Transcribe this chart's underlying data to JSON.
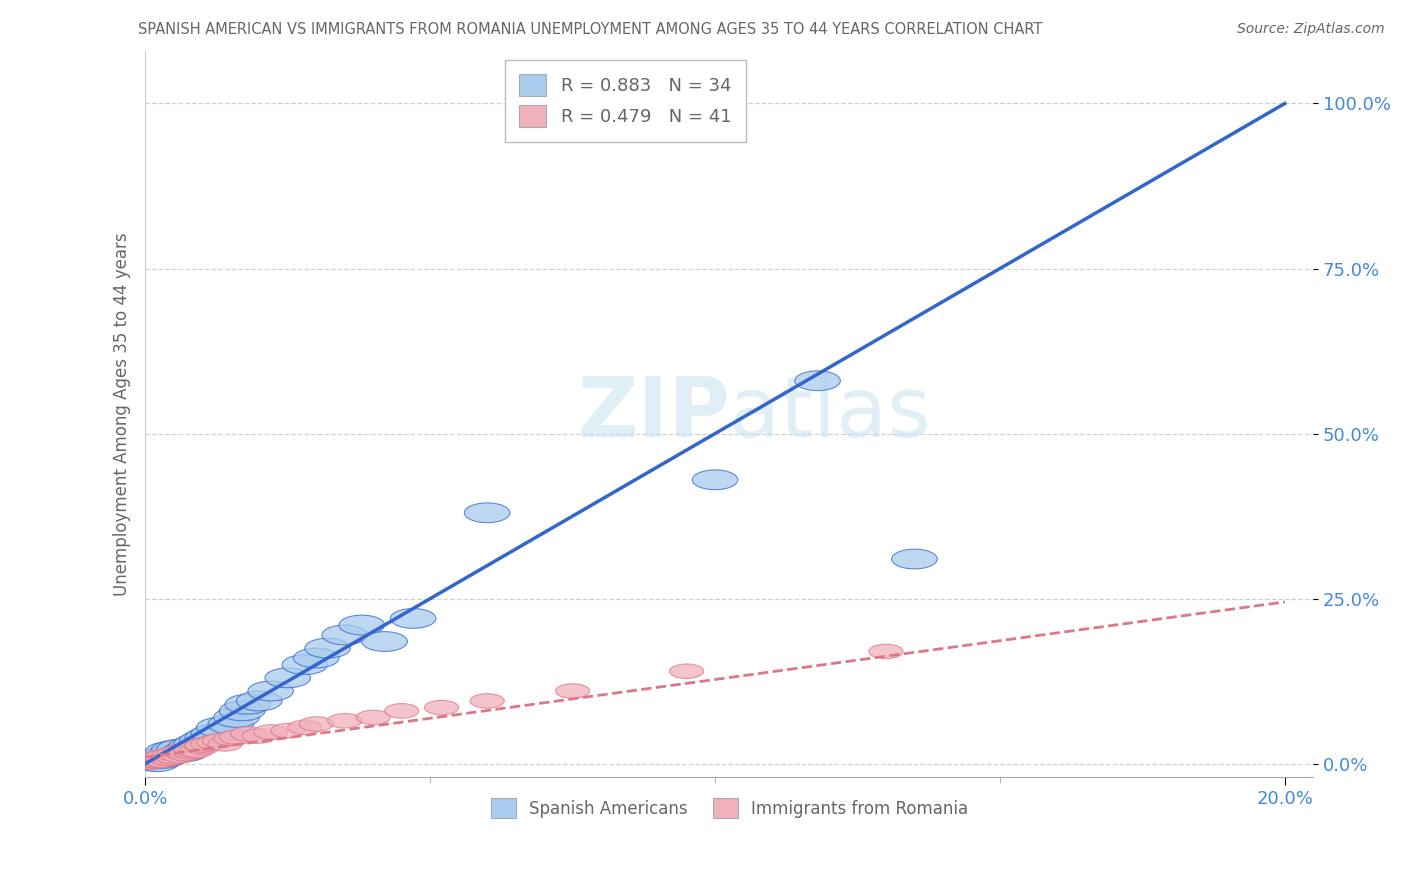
{
  "title": "SPANISH AMERICAN VS IMMIGRANTS FROM ROMANIA UNEMPLOYMENT AMONG AGES 35 TO 44 YEARS CORRELATION CHART",
  "source": "Source: ZipAtlas.com",
  "ylabel": "Unemployment Among Ages 35 to 44 years",
  "x_ticklabels": [
    "0.0%",
    "20.0%"
  ],
  "y_ticklabels": [
    "0.0%",
    "25.0%",
    "50.0%",
    "75.0%",
    "100.0%"
  ],
  "xlim": [
    0.0,
    0.205
  ],
  "ylim": [
    -0.02,
    1.08
  ],
  "blue_R": 0.883,
  "blue_N": 34,
  "pink_R": 0.479,
  "pink_N": 41,
  "blue_color": "#aaccee",
  "pink_color": "#f0b0bc",
  "blue_line_color": "#3366cc",
  "pink_line_color": "#dd7788",
  "watermark_text": "ZIPatlas",
  "legend_label_blue": "Spanish Americans",
  "legend_label_pink": "Immigrants from Romania",
  "background_color": "#ffffff",
  "grid_color": "#cccccc",
  "title_color": "#666666",
  "axis_label_color": "#666666",
  "tick_color": "#4488dd",
  "blue_scatter_x": [
    0.001,
    0.002,
    0.003,
    0.003,
    0.004,
    0.004,
    0.005,
    0.005,
    0.006,
    0.007,
    0.008,
    0.009,
    0.01,
    0.011,
    0.012,
    0.013,
    0.015,
    0.016,
    0.017,
    0.018,
    0.02,
    0.022,
    0.025,
    0.028,
    0.03,
    0.032,
    0.035,
    0.038,
    0.042,
    0.047,
    0.06,
    0.1,
    0.118,
    0.135
  ],
  "blue_scatter_y": [
    0.005,
    0.003,
    0.008,
    0.01,
    0.012,
    0.018,
    0.015,
    0.02,
    0.022,
    0.018,
    0.025,
    0.03,
    0.035,
    0.04,
    0.045,
    0.055,
    0.06,
    0.07,
    0.08,
    0.09,
    0.095,
    0.11,
    0.13,
    0.15,
    0.16,
    0.175,
    0.195,
    0.21,
    0.185,
    0.22,
    0.38,
    0.43,
    0.58,
    0.31
  ],
  "pink_scatter_x": [
    0.0005,
    0.001,
    0.001,
    0.002,
    0.002,
    0.002,
    0.003,
    0.003,
    0.004,
    0.004,
    0.005,
    0.005,
    0.006,
    0.006,
    0.007,
    0.007,
    0.008,
    0.008,
    0.009,
    0.01,
    0.01,
    0.011,
    0.012,
    0.013,
    0.014,
    0.015,
    0.016,
    0.018,
    0.02,
    0.022,
    0.025,
    0.028,
    0.03,
    0.035,
    0.04,
    0.045,
    0.052,
    0.06,
    0.075,
    0.095,
    0.13
  ],
  "pink_scatter_y": [
    0.002,
    0.003,
    0.005,
    0.004,
    0.006,
    0.008,
    0.005,
    0.01,
    0.008,
    0.012,
    0.01,
    0.015,
    0.012,
    0.018,
    0.015,
    0.02,
    0.018,
    0.022,
    0.02,
    0.025,
    0.028,
    0.03,
    0.032,
    0.035,
    0.03,
    0.038,
    0.04,
    0.045,
    0.042,
    0.048,
    0.05,
    0.055,
    0.06,
    0.065,
    0.07,
    0.08,
    0.085,
    0.095,
    0.11,
    0.14,
    0.17
  ],
  "blue_line_x": [
    0.0,
    0.2
  ],
  "blue_line_y": [
    0.0,
    1.0
  ],
  "pink_line_x": [
    0.0,
    0.2
  ],
  "pink_line_y": [
    0.01,
    0.245
  ]
}
